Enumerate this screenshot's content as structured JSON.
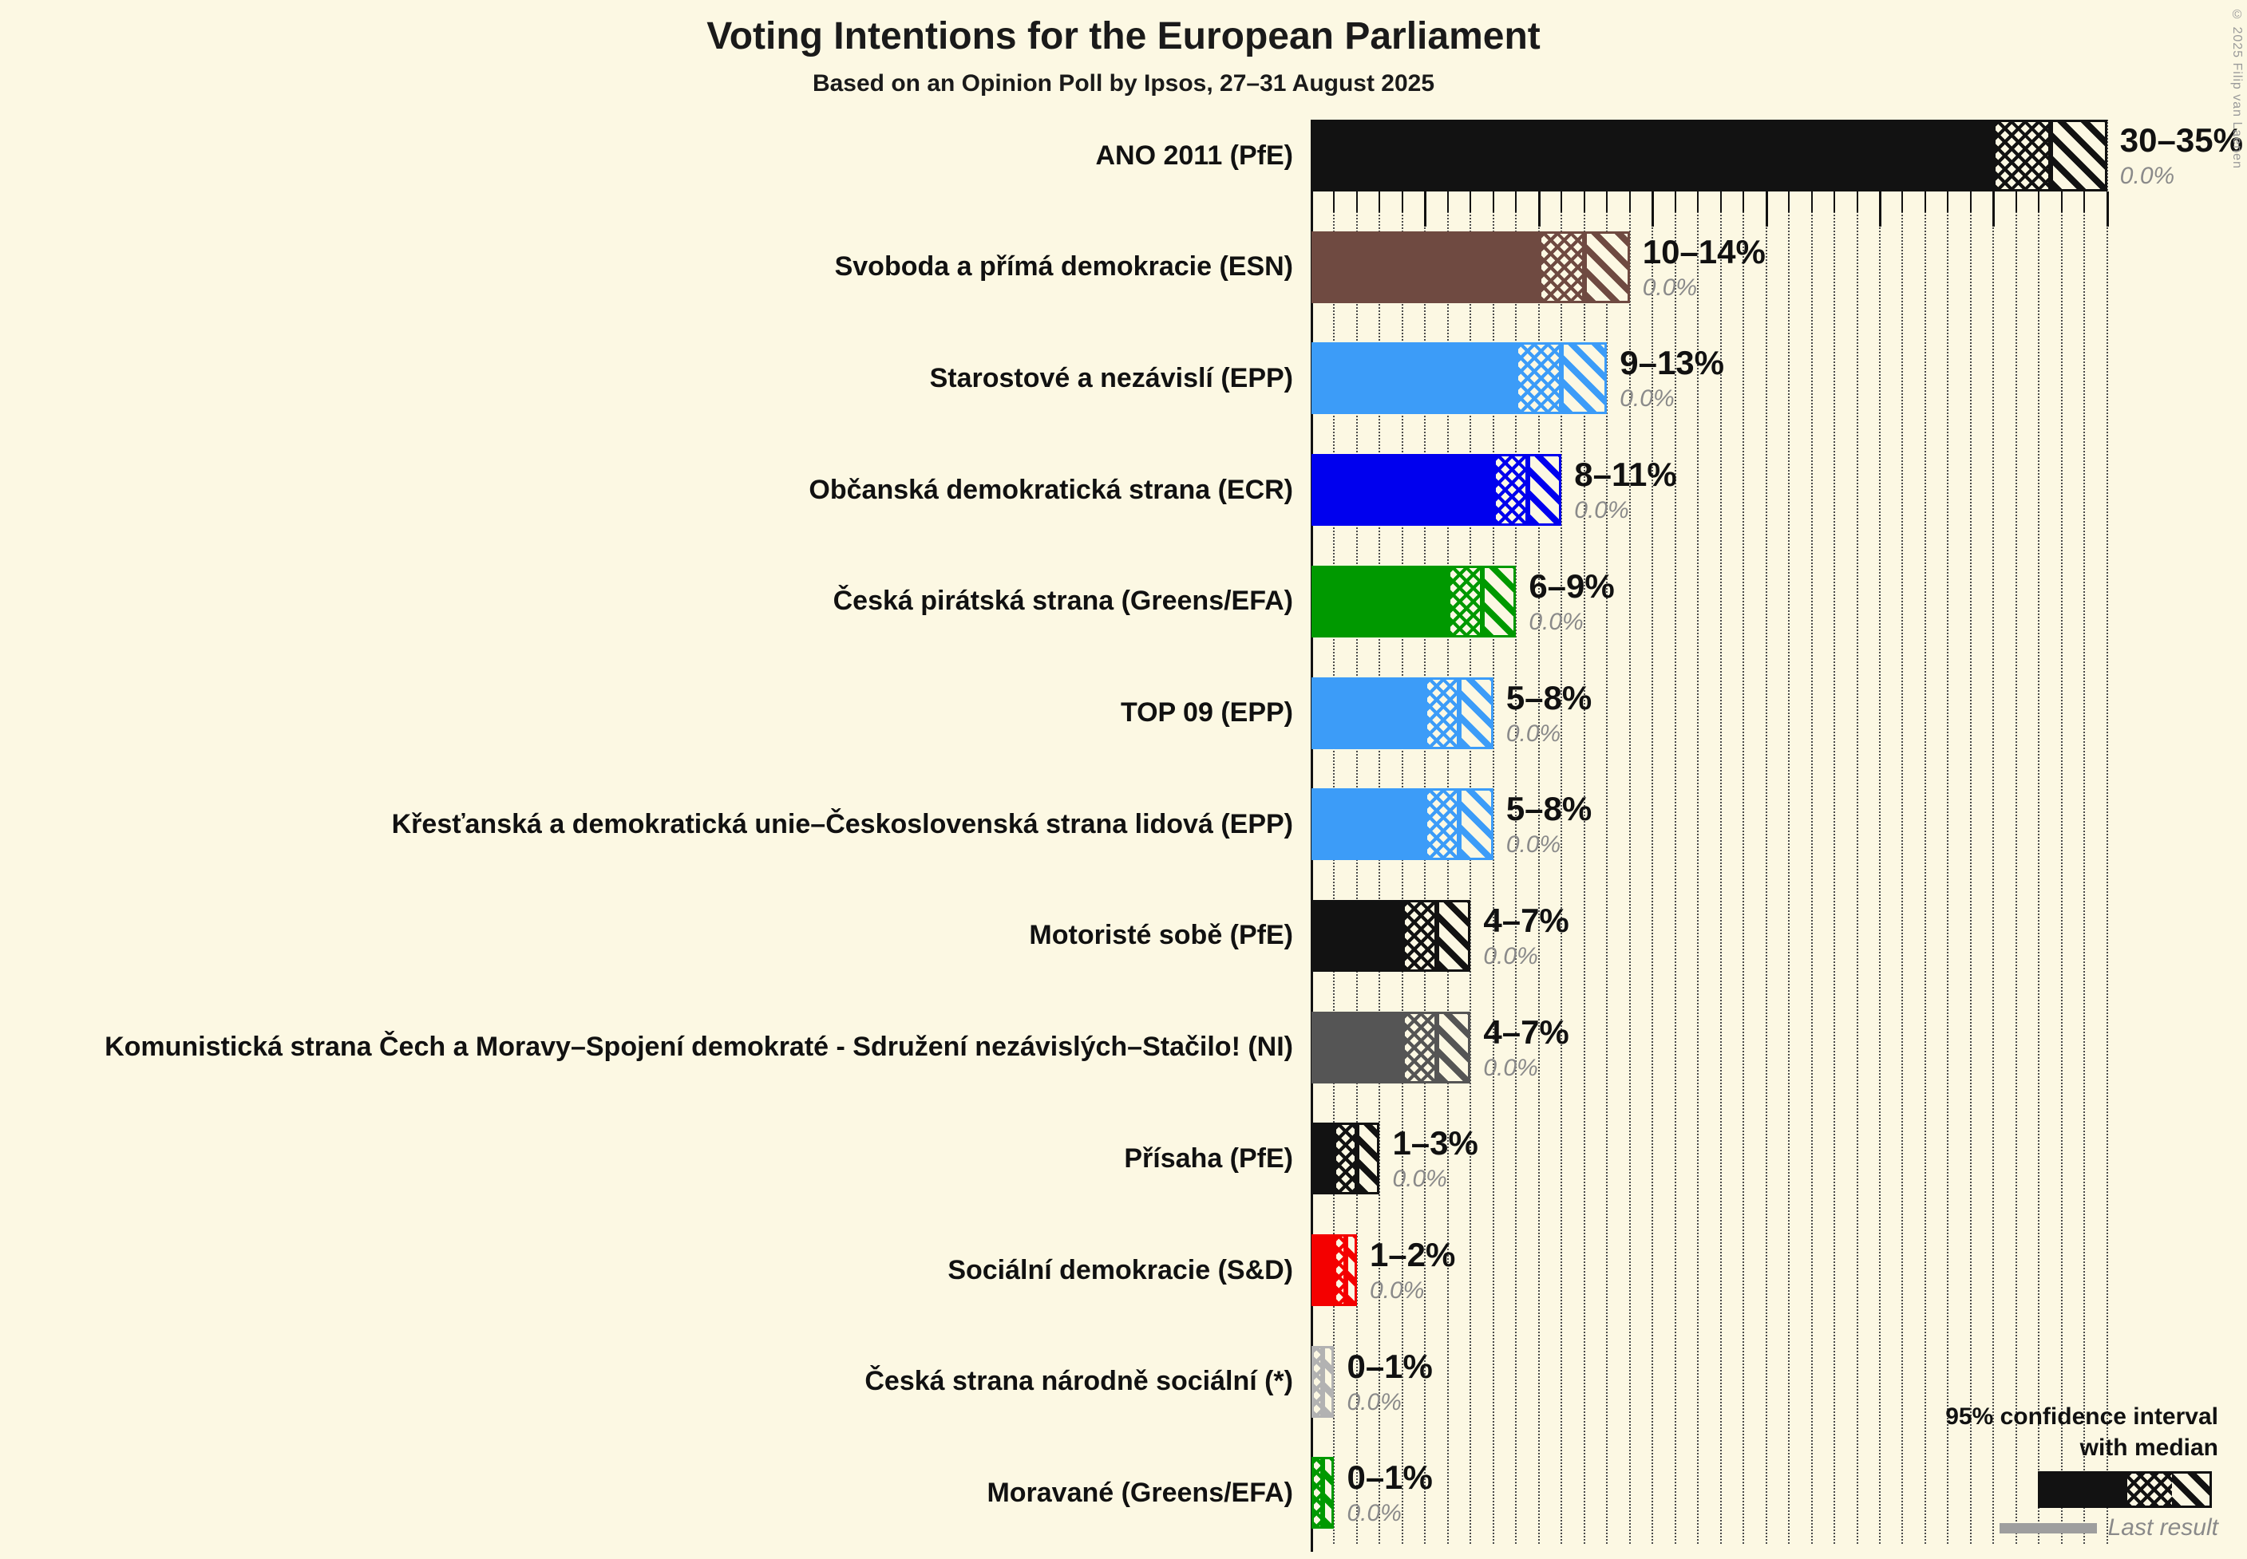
{
  "title": "Voting Intentions for the European Parliament",
  "subtitle": "Based on an Opinion Poll by Ipsos, 27–31 August 2025",
  "copyright": "© 2025 Filip van Laenen",
  "legend": {
    "line1": "95% confidence interval",
    "line2": "with median",
    "last_result_label": "Last result"
  },
  "colors": {
    "background": "#fcf8e3",
    "black": "#121212",
    "brown": "#6f4a41",
    "lightblue": "#3c9cf8",
    "blue": "#0000ee",
    "green": "#009900",
    "darkgray": "#555555",
    "red": "#f40000",
    "silver": "#b2b2b2",
    "last_result_gray": "#9e9e9e"
  },
  "chart_data": {
    "type": "bar",
    "orientation": "horizontal",
    "x_axis": {
      "min": 0,
      "max": 35,
      "minor_tick": 1,
      "major_tick": 5,
      "unit": "%"
    },
    "bars": [
      {
        "label": "ANO 2011 (PfE)",
        "color": "black",
        "low": 30,
        "median": 32.5,
        "high": 35,
        "ci_label": "30–35%",
        "last_result": 0.0,
        "last_result_label": "0.0%"
      },
      {
        "label": "Svoboda a přímá demokracie (ESN)",
        "color": "brown",
        "low": 10,
        "median": 12,
        "high": 14,
        "ci_label": "10–14%",
        "last_result": 0.0,
        "last_result_label": "0.0%"
      },
      {
        "label": "Starostové a nezávislí (EPP)",
        "color": "lightblue",
        "low": 9,
        "median": 11,
        "high": 13,
        "ci_label": "9–13%",
        "last_result": 0.0,
        "last_result_label": "0.0%"
      },
      {
        "label": "Občanská demokratická strana (ECR)",
        "color": "blue",
        "low": 8,
        "median": 9.5,
        "high": 11,
        "ci_label": "8–11%",
        "last_result": 0.0,
        "last_result_label": "0.0%"
      },
      {
        "label": "Česká pirátská strana (Greens/EFA)",
        "color": "green",
        "low": 6,
        "median": 7.5,
        "high": 9,
        "ci_label": "6–9%",
        "last_result": 0.0,
        "last_result_label": "0.0%"
      },
      {
        "label": "TOP 09 (EPP)",
        "color": "lightblue",
        "low": 5,
        "median": 6.5,
        "high": 8,
        "ci_label": "5–8%",
        "last_result": 0.0,
        "last_result_label": "0.0%"
      },
      {
        "label": "Křesťanská a demokratická unie–Československá strana lidová (EPP)",
        "color": "lightblue",
        "low": 5,
        "median": 6.5,
        "high": 8,
        "ci_label": "5–8%",
        "last_result": 0.0,
        "last_result_label": "0.0%"
      },
      {
        "label": "Motoristé sobě (PfE)",
        "color": "black",
        "low": 4,
        "median": 5.5,
        "high": 7,
        "ci_label": "4–7%",
        "last_result": 0.0,
        "last_result_label": "0.0%"
      },
      {
        "label": "Komunistická strana Čech a Moravy–Spojení demokraté - Sdružení nezávislých–Stačilo! (NI)",
        "color": "darkgray",
        "low": 4,
        "median": 5.5,
        "high": 7,
        "ci_label": "4–7%",
        "last_result": 0.0,
        "last_result_label": "0.0%"
      },
      {
        "label": "Přísaha (PfE)",
        "color": "black",
        "low": 1,
        "median": 2,
        "high": 3,
        "ci_label": "1–3%",
        "last_result": 0.0,
        "last_result_label": "0.0%"
      },
      {
        "label": "Sociální demokracie (S&D)",
        "color": "red",
        "low": 1,
        "median": 1.5,
        "high": 2,
        "ci_label": "1–2%",
        "last_result": 0.0,
        "last_result_label": "0.0%"
      },
      {
        "label": "Česká strana národně sociální (*)",
        "color": "silver",
        "low": 0,
        "median": 0.5,
        "high": 1,
        "ci_label": "0–1%",
        "last_result": 0.0,
        "last_result_label": "0.0%"
      },
      {
        "label": "Moravané (Greens/EFA)",
        "color": "green",
        "low": 0,
        "median": 0.5,
        "high": 1,
        "ci_label": "0–1%",
        "last_result": 0.0,
        "last_result_label": "0.0%"
      }
    ]
  }
}
